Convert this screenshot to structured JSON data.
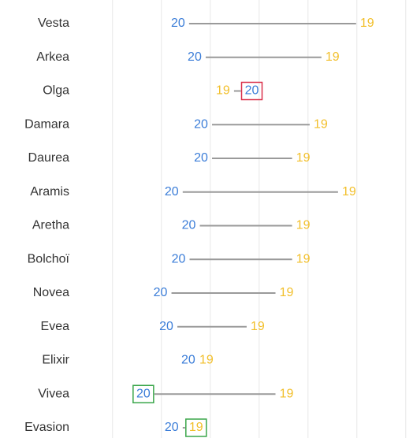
{
  "chart_data": {
    "type": "dumbbell",
    "categories": [
      "Vesta",
      "Arkea",
      "Olga",
      "Damara",
      "Daurea",
      "Aramis",
      "Aretha",
      "Bolchoï",
      "Novea",
      "Evea",
      "Elixir",
      "Vivea",
      "Evasion"
    ],
    "series": [
      {
        "name": "20",
        "color": "#3b7dd8",
        "values": [
          1.34,
          1.68,
          2.85,
          1.81,
          1.81,
          1.21,
          1.56,
          1.35,
          0.98,
          1.1,
          1.55,
          0.63,
          1.21
        ]
      },
      {
        "name": "19",
        "color": "#f2bf2a",
        "values": [
          5.21,
          4.5,
          2.26,
          4.26,
          3.9,
          4.84,
          3.9,
          3.9,
          3.56,
          2.97,
          1.92,
          3.56,
          1.71
        ]
      }
    ],
    "xlim": [
      -0.4,
      6.1
    ],
    "xticks": [
      0,
      1,
      2,
      3,
      4,
      5,
      6
    ],
    "grid": true,
    "line_color": "#9a9a9a",
    "highlights": [
      {
        "series": 0,
        "index": 2,
        "color": "#d9304a"
      },
      {
        "series": 0,
        "index": 11,
        "color": "#3aa64a"
      },
      {
        "series": 1,
        "index": 12,
        "color": "#3aa64a"
      }
    ]
  }
}
